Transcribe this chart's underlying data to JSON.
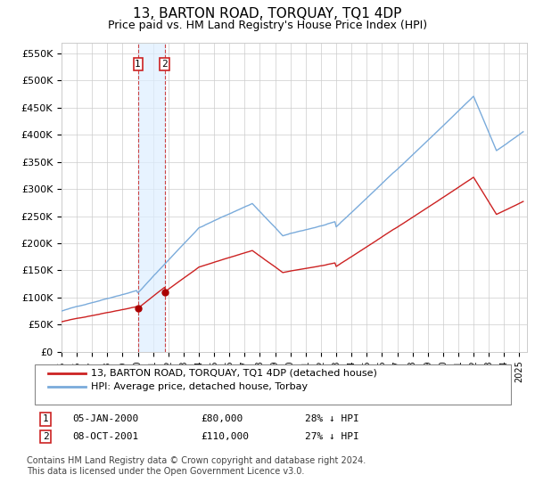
{
  "title": "13, BARTON ROAD, TORQUAY, TQ1 4DP",
  "subtitle": "Price paid vs. HM Land Registry's House Price Index (HPI)",
  "title_fontsize": 11,
  "subtitle_fontsize": 9,
  "ylabel_ticks": [
    "£0",
    "£50K",
    "£100K",
    "£150K",
    "£200K",
    "£250K",
    "£300K",
    "£350K",
    "£400K",
    "£450K",
    "£500K",
    "£550K"
  ],
  "ytick_values": [
    0,
    50000,
    100000,
    150000,
    200000,
    250000,
    300000,
    350000,
    400000,
    450000,
    500000,
    550000
  ],
  "ylim": [
    0,
    570000
  ],
  "hpi_color": "#7aabdb",
  "price_color": "#cc2222",
  "legend_label_price": "13, BARTON ROAD, TORQUAY, TQ1 4DP (detached house)",
  "legend_label_hpi": "HPI: Average price, detached house, Torbay",
  "transaction1_date": "05-JAN-2000",
  "transaction1_price": "£80,000",
  "transaction1_hpi": "28% ↓ HPI",
  "transaction2_date": "08-OCT-2001",
  "transaction2_price": "£110,000",
  "transaction2_hpi": "27% ↓ HPI",
  "footnote": "Contains HM Land Registry data © Crown copyright and database right 2024.\nThis data is licensed under the Open Government Licence v3.0.",
  "marker1_x": 2000.0,
  "marker1_y": 80000,
  "marker2_x": 2001.75,
  "marker2_y": 110000,
  "vline1_x": 2000.0,
  "vline2_x": 2001.75,
  "shade_x1": 2000.0,
  "shade_x2": 2001.75,
  "background_color": "#ffffff",
  "grid_color": "#cccccc",
  "xmin": 1995.0,
  "xmax": 2025.5
}
